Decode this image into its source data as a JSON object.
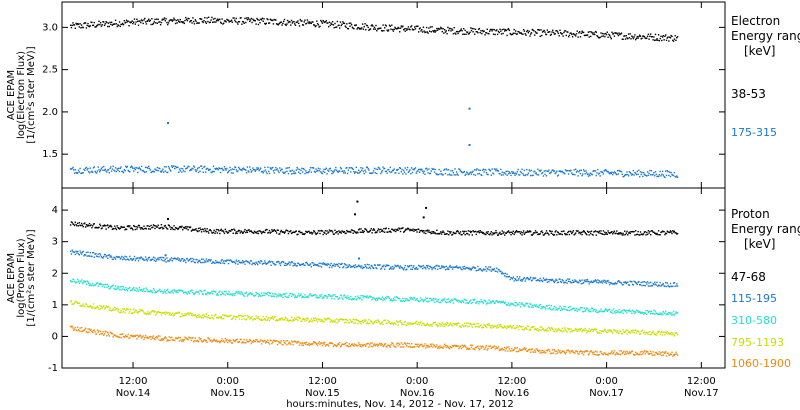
{
  "xaxis": {
    "ticks": [
      {
        "hour": 12,
        "time": "12:00",
        "day": "Nov.14"
      },
      {
        "hour": 24,
        "time": "0:00",
        "day": "Nov.15"
      },
      {
        "hour": 36,
        "time": "12:00",
        "day": "Nov.15"
      },
      {
        "hour": 48,
        "time": "0:00",
        "day": "Nov.16"
      },
      {
        "hour": 60,
        "time": "12:00",
        "day": "Nov.16"
      },
      {
        "hour": 72,
        "time": "0:00",
        "day": "Nov.17"
      },
      {
        "hour": 84,
        "time": "12:00",
        "day": "Nov.17"
      }
    ],
    "label": "hours:minutes, Nov. 14, 2012 - Nov. 17, 2012"
  },
  "chart_data": [
    {
      "type": "scatter",
      "ylabel_lines": [
        "ACE EPAM",
        "log(Electron Flux)",
        "[1/(cm²s ster MeV)]"
      ],
      "ylim": [
        1.1,
        3.3
      ],
      "xlim_hours": [
        3,
        87
      ],
      "yticks": [
        1.5,
        2.0,
        2.5,
        3.0
      ],
      "ytick_labels": [
        "1.5",
        "2.0",
        "2.5",
        "3.0"
      ],
      "legend_title": [
        "Electron",
        "Energy ranges",
        "[keV]"
      ],
      "series": [
        {
          "name": "38-53",
          "color": "#000000",
          "hours": [
            4,
            12,
            20,
            28,
            36,
            44,
            52,
            60,
            68,
            76,
            81
          ],
          "values": [
            3.02,
            3.07,
            3.09,
            3.08,
            3.05,
            3.0,
            2.97,
            2.95,
            2.93,
            2.9,
            2.88
          ],
          "spikes": []
        },
        {
          "name": "175-315",
          "color": "#1a78d0",
          "hours": [
            4,
            12,
            20,
            28,
            36,
            44,
            52,
            60,
            68,
            76,
            81
          ],
          "values": [
            1.32,
            1.33,
            1.33,
            1.32,
            1.31,
            1.32,
            1.3,
            1.29,
            1.29,
            1.28,
            1.27
          ],
          "spikes": [
            {
              "hour": 16.3,
              "value": 1.88
            },
            {
              "hour": 54.5,
              "value": 2.05
            },
            {
              "hour": 54.5,
              "value": 1.62
            }
          ]
        }
      ]
    },
    {
      "type": "scatter",
      "ylabel_lines": [
        "ACE EPAM",
        "log(Proton Flux)",
        "[1/(cm²s ster MeV)]"
      ],
      "ylim": [
        -1.0,
        4.7
      ],
      "xlim_hours": [
        3,
        87
      ],
      "yticks": [
        -1,
        0,
        1,
        2,
        3,
        4
      ],
      "ytick_labels": [
        "-1",
        "0",
        "1",
        "2",
        "3",
        "4"
      ],
      "legend_title": [
        "Proton",
        "Energy ranges",
        "[keV]"
      ],
      "series": [
        {
          "name": "47-68",
          "color": "#000000",
          "hours": [
            4,
            10,
            16,
            22,
            28,
            34,
            40,
            46,
            52,
            58,
            64,
            70,
            76,
            81
          ],
          "values": [
            3.6,
            3.45,
            3.5,
            3.35,
            3.35,
            3.3,
            3.35,
            3.4,
            3.3,
            3.3,
            3.3,
            3.3,
            3.3,
            3.3
          ],
          "spikes": [
            {
              "hour": 16.3,
              "value": 3.75
            },
            {
              "hour": 40.0,
              "value": 3.9
            },
            {
              "hour": 40.3,
              "value": 4.3
            },
            {
              "hour": 48.7,
              "value": 3.8
            },
            {
              "hour": 49.0,
              "value": 4.1
            }
          ]
        },
        {
          "name": "115-195",
          "color": "#1a78d0",
          "hours": [
            4,
            10,
            16,
            22,
            28,
            34,
            40,
            46,
            52,
            58,
            60,
            64,
            70,
            76,
            81
          ],
          "values": [
            2.7,
            2.5,
            2.45,
            2.4,
            2.35,
            2.3,
            2.25,
            2.2,
            2.2,
            2.15,
            1.85,
            1.8,
            1.75,
            1.7,
            1.65
          ],
          "spikes": [
            {
              "hour": 16.0,
              "value": 2.6
            },
            {
              "hour": 40.5,
              "value": 2.5
            }
          ]
        },
        {
          "name": "310-580",
          "color": "#20e0d0",
          "hours": [
            4,
            10,
            16,
            22,
            28,
            34,
            40,
            46,
            52,
            58,
            64,
            70,
            76,
            81
          ],
          "values": [
            1.8,
            1.55,
            1.45,
            1.4,
            1.35,
            1.3,
            1.25,
            1.2,
            1.15,
            1.1,
            0.95,
            0.85,
            0.8,
            0.75
          ],
          "spikes": []
        },
        {
          "name": "795-1193",
          "color": "#c8e000",
          "hours": [
            4,
            10,
            16,
            22,
            28,
            34,
            40,
            46,
            52,
            58,
            64,
            70,
            76,
            81
          ],
          "values": [
            1.1,
            0.85,
            0.75,
            0.65,
            0.6,
            0.55,
            0.5,
            0.45,
            0.4,
            0.35,
            0.25,
            0.2,
            0.15,
            0.1
          ],
          "spikes": []
        },
        {
          "name": "1060-1900",
          "color": "#f08a10",
          "hours": [
            4,
            10,
            16,
            22,
            28,
            34,
            40,
            46,
            52,
            58,
            64,
            70,
            76,
            81
          ],
          "values": [
            0.3,
            0.05,
            -0.05,
            -0.1,
            -0.15,
            -0.2,
            -0.25,
            -0.25,
            -0.3,
            -0.35,
            -0.45,
            -0.5,
            -0.5,
            -0.55
          ],
          "spikes": []
        }
      ]
    }
  ]
}
